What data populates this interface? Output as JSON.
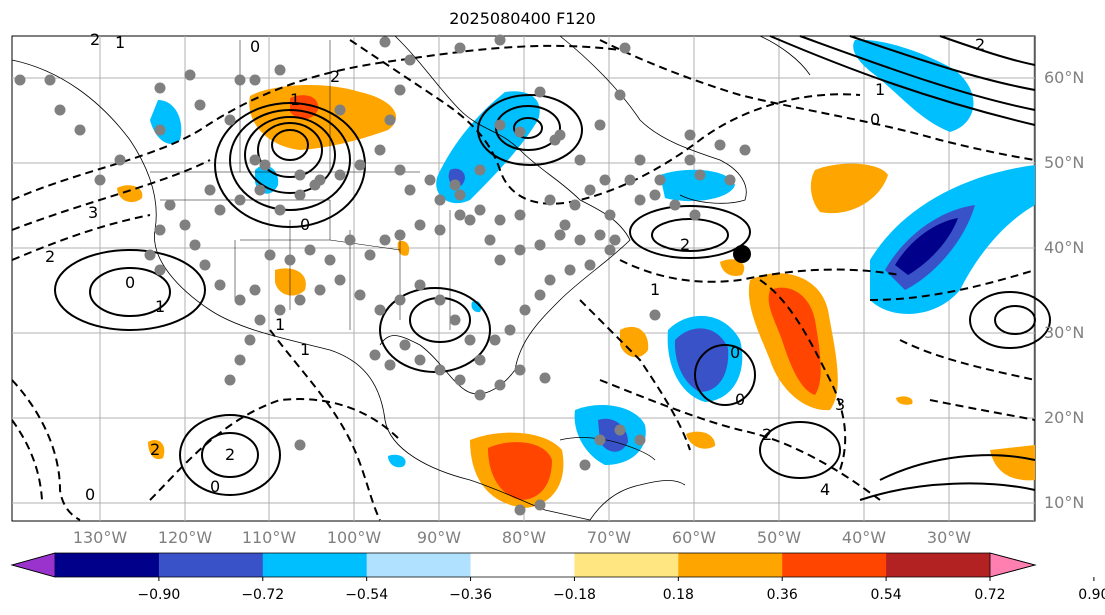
{
  "title": "2025080400 F120",
  "map": {
    "lon_labels": [
      "130°W",
      "120°W",
      "110°W",
      "100°W",
      "90°W",
      "80°W",
      "70°W",
      "60°W",
      "50°W",
      "40°W",
      "30°W"
    ],
    "lat_labels": [
      "60°N",
      "50°N",
      "40°N",
      "30°N",
      "20°N",
      "10°N"
    ],
    "gridline_color": "#b0b0b0",
    "coastline_color": "#000000",
    "contour_labels": [
      "2",
      "1",
      "0",
      "3",
      "2",
      "1",
      "0",
      "1",
      "2",
      "0",
      "1",
      "1",
      "2",
      "2",
      "0",
      "0",
      "1",
      "2",
      "1",
      "0",
      "0",
      "2",
      "4",
      "3",
      "2",
      "1",
      "0"
    ],
    "station_marker_color": "#808080",
    "highlight_marker": "black dot"
  },
  "colorbar": {
    "ticks": [
      "−0.90",
      "−0.72",
      "−0.54",
      "−0.36",
      "−0.18",
      "0.18",
      "0.36",
      "0.54",
      "0.72",
      "0.90"
    ],
    "colors": [
      "#9a32cd",
      "#00008b",
      "#3a52c8",
      "#00bfff",
      "#b0e2ff",
      "#ffffff",
      "#ffe680",
      "#ffa500",
      "#ff4500",
      "#b22222",
      "#ff80b0"
    ]
  }
}
